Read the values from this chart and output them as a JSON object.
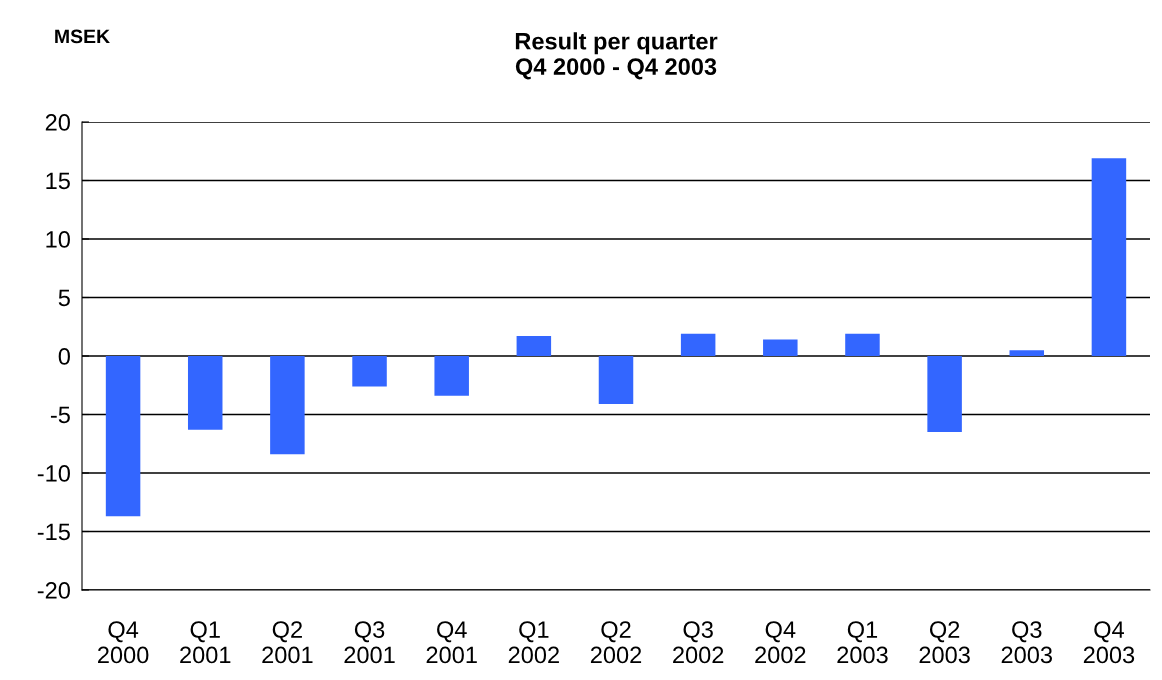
{
  "chart_data": {
    "type": "bar",
    "title": "Result per quarter\nQ4 2000 - Q4 2003",
    "ylabel": "MSEK",
    "categories": [
      "Q4\n2000",
      "Q1\n2001",
      "Q2\n2001",
      "Q3\n2001",
      "Q4\n2001",
      "Q1\n2002",
      "Q2\n2002",
      "Q3\n2002",
      "Q4\n2002",
      "Q1\n2003",
      "Q2\n2003",
      "Q3\n2003",
      "Q4\n2003"
    ],
    "values": [
      -13.7,
      -6.3,
      -8.4,
      -2.6,
      -3.4,
      1.7,
      -4.1,
      1.9,
      1.4,
      1.9,
      -6.5,
      0.5,
      16.9
    ],
    "color": "#3366ff",
    "ylim": [
      -20,
      20
    ],
    "yticks": [
      -20,
      -15,
      -10,
      -5,
      0,
      5,
      10,
      15,
      20
    ],
    "grid": "y"
  }
}
